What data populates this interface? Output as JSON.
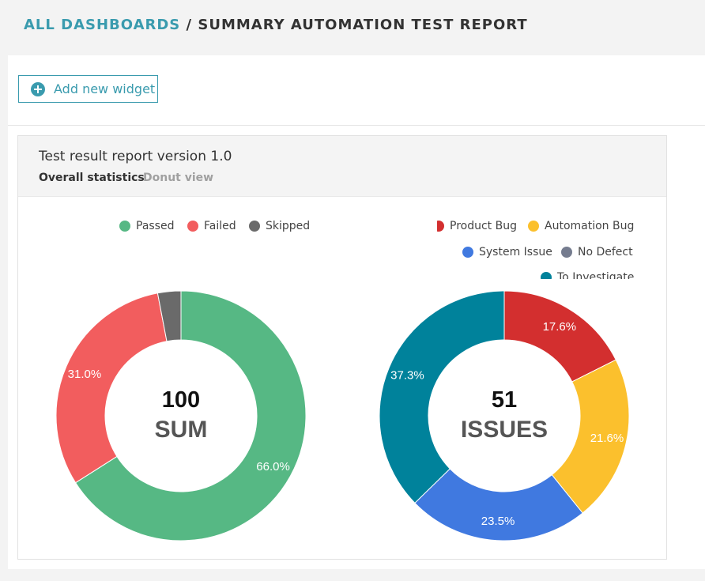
{
  "breadcrumb": {
    "link": "ALL DASHBOARDS",
    "separator": " / ",
    "current": "SUMMARY AUTOMATION TEST REPORT"
  },
  "toolbar": {
    "add_widget_label": "Add new widget"
  },
  "widget": {
    "title": "Test result report version 1.0",
    "subtitle": "Overall statistics",
    "view_mode": "Donut view"
  },
  "legend_left": [
    {
      "label": "Passed",
      "color": "#56b884"
    },
    {
      "label": "Failed",
      "color": "#f25d5e"
    },
    {
      "label": "Skipped",
      "color": "#6a6a6a"
    }
  ],
  "legend_right": [
    {
      "label": "Product Bug",
      "color": "#d32f2f"
    },
    {
      "label": "Automation Bug",
      "color": "#fbc02d"
    },
    {
      "label": "System Issue",
      "color": "#4079e0"
    },
    {
      "label": "No Defect",
      "color": "#757c8f"
    },
    {
      "label": "To Investigate",
      "color": "#00829b"
    }
  ],
  "chart_data": [
    {
      "type": "pie",
      "center_value": "100",
      "center_label": "SUM",
      "slices": [
        {
          "name": "Passed",
          "value": 66.0,
          "label": "66.0%",
          "color": "#56b884"
        },
        {
          "name": "Failed",
          "value": 31.0,
          "label": "31.0%",
          "color": "#f25d5e"
        },
        {
          "name": "Skipped",
          "value": 3.0,
          "label": "",
          "color": "#6a6a6a"
        }
      ]
    },
    {
      "type": "pie",
      "center_value": "51",
      "center_label": "ISSUES",
      "slices": [
        {
          "name": "Product Bug",
          "value": 17.6,
          "label": "17.6%",
          "color": "#d32f2f"
        },
        {
          "name": "Automation Bug",
          "value": 21.6,
          "label": "21.6%",
          "color": "#fbc02d"
        },
        {
          "name": "System Issue",
          "value": 23.5,
          "label": "23.5%",
          "color": "#4079e0"
        },
        {
          "name": "No Defect",
          "value": 0,
          "label": "",
          "color": "#757c8f"
        },
        {
          "name": "To Investigate",
          "value": 37.3,
          "label": "37.3%",
          "color": "#00829b"
        }
      ]
    }
  ]
}
